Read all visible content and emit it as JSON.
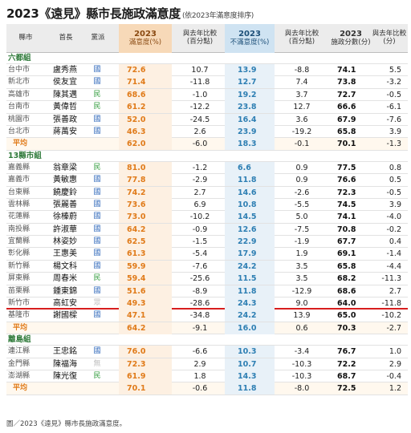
{
  "title": "2023《遠見》縣市長施政滿意度",
  "subtitle": "(依2023年滿意度排序)",
  "columns": {
    "city": "縣市",
    "chief": "首長",
    "party": "黨派",
    "sat_year": "2023",
    "sat_label": "滿意度(%)",
    "sat_change": "與去年比較\n(百分點)",
    "dis_year": "2023",
    "dis_label": "不滿意度(%)",
    "dis_change": "與去年比較\n(百分點)",
    "score_year": "2023",
    "score_label": "施政分數(分)",
    "score_change": "與去年比較\n(分)"
  },
  "groups": [
    {
      "name": "六都組",
      "rows": [
        {
          "city": "台中市",
          "chief": "盧秀燕",
          "party": "國",
          "sat": "72.6",
          "sat_change": "10.7",
          "dis": "13.9",
          "dis_change": "-8.8",
          "score": "74.1",
          "score_change": "5.5"
        },
        {
          "city": "新北市",
          "chief": "侯友宜",
          "party": "國",
          "sat": "71.4",
          "sat_change": "-11.8",
          "dis": "12.7",
          "dis_change": "7.4",
          "score": "73.8",
          "score_change": "-3.2"
        },
        {
          "city": "高雄市",
          "chief": "陳其邁",
          "party": "民",
          "sat": "68.6",
          "sat_change": "-1.0",
          "dis": "19.2",
          "dis_change": "3.7",
          "score": "72.7",
          "score_change": "-0.5"
        },
        {
          "city": "台南市",
          "chief": "黃偉哲",
          "party": "民",
          "sat": "61.2",
          "sat_change": "-12.2",
          "dis": "23.8",
          "dis_change": "12.7",
          "score": "66.6",
          "score_change": "-6.1"
        },
        {
          "city": "桃園市",
          "chief": "張善政",
          "party": "國",
          "sat": "52.0",
          "sat_change": "-24.5",
          "dis": "16.4",
          "dis_change": "3.6",
          "score": "67.9",
          "score_change": "-7.6"
        },
        {
          "city": "台北市",
          "chief": "蔣萬安",
          "party": "國",
          "sat": "46.3",
          "sat_change": "2.6",
          "dis": "23.9",
          "dis_change": "-19.2",
          "score": "65.8",
          "score_change": "3.9"
        }
      ],
      "avg": {
        "label": "平均",
        "sat": "62.0",
        "sat_change": "-6.0",
        "dis": "18.3",
        "dis_change": "-0.1",
        "score": "70.1",
        "score_change": "-1.3"
      }
    },
    {
      "name": "13縣市組",
      "rows": [
        {
          "city": "嘉義縣",
          "chief": "翁章梁",
          "party": "民",
          "sat": "81.0",
          "sat_change": "-1.2",
          "dis": "6.6",
          "dis_change": "0.9",
          "score": "77.5",
          "score_change": "0.8"
        },
        {
          "city": "嘉義市",
          "chief": "黃敏惠",
          "party": "國",
          "sat": "77.8",
          "sat_change": "-2.9",
          "dis": "11.8",
          "dis_change": "0.9",
          "score": "76.6",
          "score_change": "0.5"
        },
        {
          "city": "台東縣",
          "chief": "饒慶鈴",
          "party": "國",
          "sat": "74.2",
          "sat_change": "2.7",
          "dis": "14.6",
          "dis_change": "-2.6",
          "score": "72.3",
          "score_change": "-0.5"
        },
        {
          "city": "雲林縣",
          "chief": "張麗善",
          "party": "國",
          "sat": "73.6",
          "sat_change": "6.9",
          "dis": "10.8",
          "dis_change": "-5.5",
          "score": "74.5",
          "score_change": "3.9"
        },
        {
          "city": "花蓮縣",
          "chief": "徐榛蔚",
          "party": "國",
          "sat": "73.0",
          "sat_change": "-10.2",
          "dis": "14.5",
          "dis_change": "5.0",
          "score": "74.1",
          "score_change": "-4.0"
        },
        {
          "city": "南投縣",
          "chief": "許淑華",
          "party": "國",
          "sat": "64.2",
          "sat_change": "-0.9",
          "dis": "12.6",
          "dis_change": "-7.5",
          "score": "70.8",
          "score_change": "-0.2"
        },
        {
          "city": "宜蘭縣",
          "chief": "林姿妙",
          "party": "國",
          "sat": "62.5",
          "sat_change": "-1.5",
          "dis": "22.9",
          "dis_change": "-1.9",
          "score": "67.7",
          "score_change": "0.4"
        },
        {
          "city": "彰化縣",
          "chief": "王惠美",
          "party": "國",
          "sat": "61.3",
          "sat_change": "-5.4",
          "dis": "17.9",
          "dis_change": "1.9",
          "score": "69.1",
          "score_change": "-1.4"
        },
        {
          "city": "新竹縣",
          "chief": "楊文科",
          "party": "國",
          "sat": "59.9",
          "sat_change": "-7.6",
          "dis": "24.2",
          "dis_change": "3.5",
          "score": "65.8",
          "score_change": "-4.4"
        },
        {
          "city": "屏東縣",
          "chief": "周春米",
          "party": "民",
          "sat": "59.4",
          "sat_change": "-25.6",
          "dis": "11.5",
          "dis_change": "3.5",
          "score": "68.2",
          "score_change": "-11.3"
        },
        {
          "city": "苗栗縣",
          "chief": "鍾東錦",
          "party": "國",
          "sat": "51.6",
          "sat_change": "-8.9",
          "dis": "11.8",
          "dis_change": "-12.9",
          "score": "68.6",
          "score_change": "2.7"
        },
        {
          "city": "新竹市",
          "chief": "高虹安",
          "party": "眾",
          "sat": "49.3",
          "sat_change": "-28.6",
          "dis": "24.3",
          "dis_change": "9.0",
          "score": "64.0",
          "score_change": "-11.8"
        },
        {
          "city": "基隆市",
          "chief": "謝國樑",
          "party": "國",
          "sat": "47.1",
          "sat_change": "-34.8",
          "dis": "24.2",
          "dis_change": "13.9",
          "score": "65.0",
          "score_change": "-10.2"
        }
      ],
      "avg": {
        "label": "平均",
        "sat": "64.2",
        "sat_change": "-9.1",
        "dis": "16.0",
        "dis_change": "0.6",
        "score": "70.3",
        "score_change": "-2.7"
      }
    },
    {
      "name": "離島組",
      "rows": [
        {
          "city": "連江縣",
          "chief": "王忠銘",
          "party": "國",
          "sat": "76.0",
          "sat_change": "-6.6",
          "dis": "10.3",
          "dis_change": "-3.4",
          "score": "76.7",
          "score_change": "1.0"
        },
        {
          "city": "金門縣",
          "chief": "陳福海",
          "party": "無",
          "sat": "72.3",
          "sat_change": "2.9",
          "dis": "10.7",
          "dis_change": "-10.3",
          "score": "72.2",
          "score_change": "2.9"
        },
        {
          "city": "澎湖縣",
          "chief": "陳光復",
          "party": "民",
          "sat": "61.9",
          "sat_change": "1.8",
          "dis": "14.3",
          "dis_change": "-10.3",
          "score": "68.7",
          "score_change": "-0.4"
        }
      ],
      "avg": {
        "label": "平均",
        "sat": "70.1",
        "sat_change": "-0.6",
        "dis": "11.8",
        "dis_change": "-8.0",
        "score": "72.5",
        "score_change": "1.2"
      }
    }
  ],
  "caption": "圖／2023《遠見》縣市長施政滿意度。",
  "colors": {
    "kmt": "#2a64b8",
    "dpp": "#2e9a3a",
    "other": "#c0c0c0",
    "satisfaction": "#e07b1a",
    "dissatisfaction": "#2e7fb3",
    "highlight_line": "#d81e1e"
  }
}
